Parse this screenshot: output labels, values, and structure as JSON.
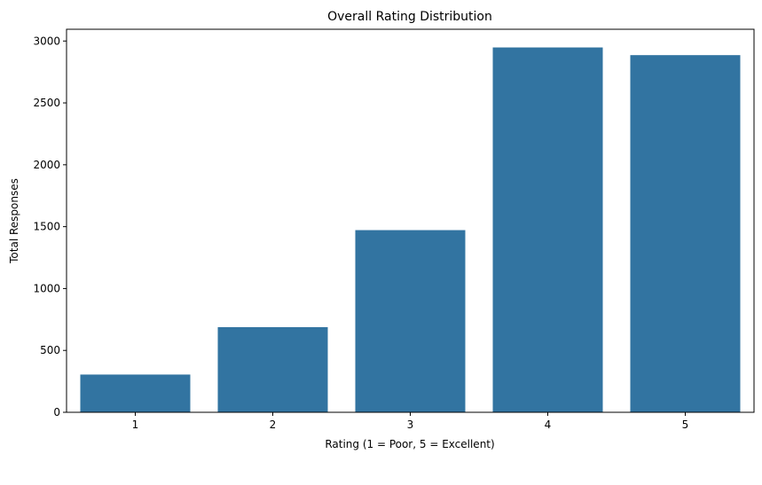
{
  "chart_data": {
    "type": "bar",
    "title": "Overall Rating Distribution",
    "xlabel": "Rating (1 = Poor, 5 = Excellent)",
    "ylabel": "Total Responses",
    "categories": [
      "1",
      "2",
      "3",
      "4",
      "5"
    ],
    "values": [
      305,
      688,
      1472,
      2948,
      2886
    ],
    "ylim": [
      0,
      3095
    ],
    "yticks": [
      0,
      500,
      1000,
      1500,
      2000,
      2500,
      3000
    ],
    "bar_color": "#3274a1",
    "grid": false,
    "legend": "none"
  }
}
